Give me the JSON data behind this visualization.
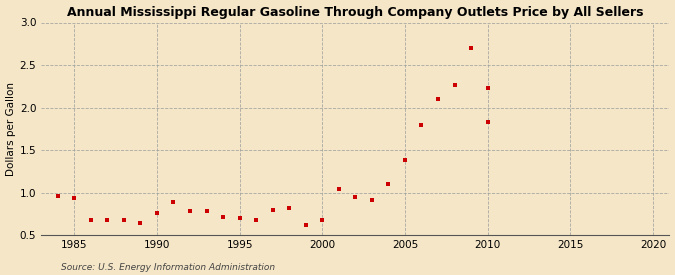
{
  "title": "Annual Mississippi Regular Gasoline Through Company Outlets Price by All Sellers",
  "ylabel": "Dollars per Gallon",
  "source": "Source: U.S. Energy Information Administration",
  "background_color": "#f5e6c8",
  "marker_color": "#cc0000",
  "xlim": [
    1983,
    2021
  ],
  "ylim": [
    0.5,
    3.0
  ],
  "xticks": [
    1985,
    1990,
    1995,
    2000,
    2005,
    2010,
    2015,
    2020
  ],
  "yticks": [
    0.5,
    1.0,
    1.5,
    2.0,
    2.5,
    3.0
  ],
  "years": [
    1984,
    1985,
    1986,
    1987,
    1988,
    1989,
    1990,
    1991,
    1992,
    1993,
    1994,
    1995,
    1996,
    1997,
    1998,
    1999,
    2000,
    2001,
    2002,
    2003,
    2004,
    2005,
    2006,
    2007,
    2008,
    2009,
    2010
  ],
  "values": [
    0.96,
    0.94,
    0.68,
    0.68,
    0.68,
    0.65,
    0.76,
    0.89,
    0.79,
    0.78,
    0.72,
    0.7,
    0.68,
    0.8,
    0.82,
    0.62,
    0.68,
    1.04,
    0.95,
    0.92,
    1.1,
    1.38,
    1.8,
    2.1,
    2.26,
    2.7,
    1.83
  ],
  "extra_years": [
    2010
  ],
  "extra_values": [
    2.23
  ]
}
